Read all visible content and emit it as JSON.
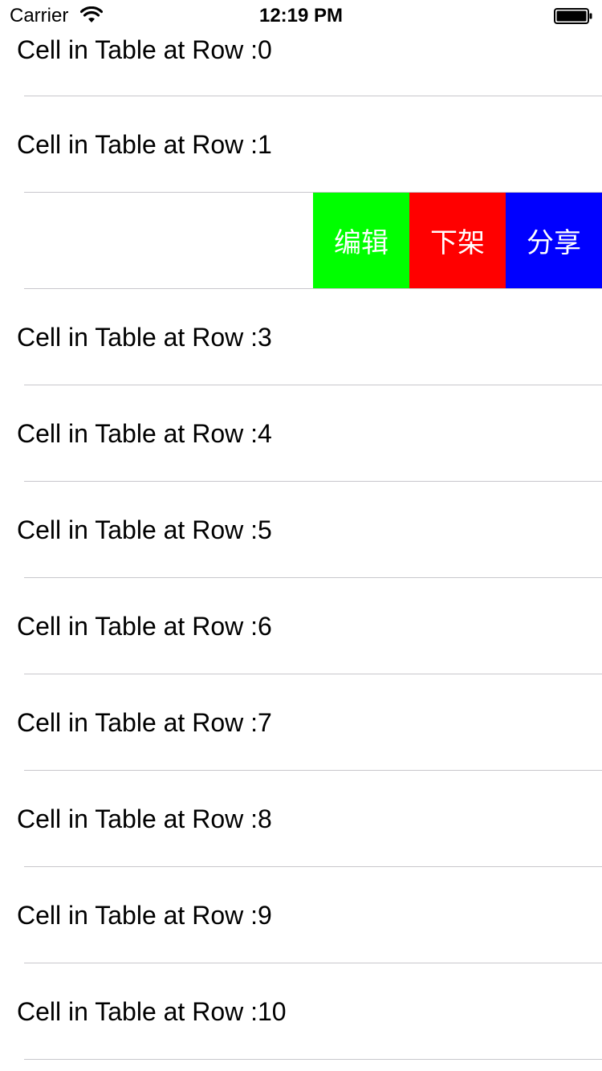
{
  "status_bar": {
    "carrier": "Carrier",
    "time": "12:19 PM",
    "wifi_icon": "wifi-icon",
    "battery_icon": "battery-icon"
  },
  "table": {
    "rows": [
      {
        "label": "Cell in Table at Row :0"
      },
      {
        "label": "Cell in Table at Row :1"
      },
      {
        "label": ""
      },
      {
        "label": "Cell in Table at Row :3"
      },
      {
        "label": "Cell in Table at Row :4"
      },
      {
        "label": "Cell in Table at Row :5"
      },
      {
        "label": "Cell in Table at Row :6"
      },
      {
        "label": "Cell in Table at Row :7"
      },
      {
        "label": "Cell in Table at Row :8"
      },
      {
        "label": "Cell in Table at Row :9"
      },
      {
        "label": "Cell in Table at Row :10"
      }
    ],
    "swipe_actions": [
      {
        "label": "编辑",
        "color": "#00ff00"
      },
      {
        "label": "下架",
        "color": "#ff0000"
      },
      {
        "label": "分享",
        "color": "#0000ff"
      }
    ]
  }
}
